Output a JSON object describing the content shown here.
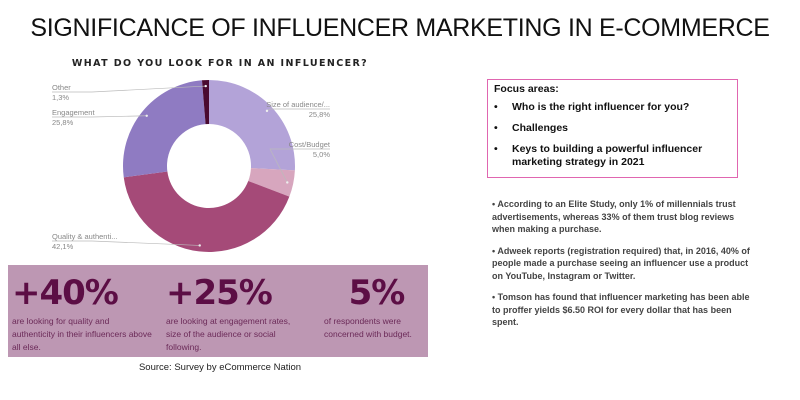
{
  "title": "SIGNIFICANCE OF INFLUENCER MARKETING IN E-COMMERCE",
  "chart_data": {
    "type": "pie",
    "style": "donut",
    "title": "WHAT DO YOU LOOK FOR IN AN INFLUENCER?",
    "slices": [
      {
        "label": "Size of audience/...",
        "value": 25.8,
        "value_label": "25,8%",
        "color": "#b3a3d8"
      },
      {
        "label": "Cost/Budget",
        "value": 5.0,
        "value_label": "5,0%",
        "color": "#d7a6be"
      },
      {
        "label": "Quality & authenti...",
        "value": 42.1,
        "value_label": "42,1%",
        "color": "#a54a78"
      },
      {
        "label": "Engagement",
        "value": 25.8,
        "value_label": "25,8%",
        "color": "#8f7bc2"
      },
      {
        "label": "Other",
        "value": 1.3,
        "value_label": "1,3%",
        "color": "#4a0a30"
      }
    ]
  },
  "stats": [
    {
      "number": "+40%",
      "text": "are looking for quality and authenticity in their influencers above all else."
    },
    {
      "number": "+25%",
      "text": "are looking at engagement rates,  size of the audience or social following."
    },
    {
      "number": "5%",
      "text": "of respondents were concerned with budget."
    }
  ],
  "source": "Source: Survey by eCommerce Nation",
  "focus": {
    "heading": "Focus areas:",
    "items": [
      "Who is the right influencer for you?",
      "Challenges",
      "Keys to building a powerful influencer marketing strategy in 2021"
    ]
  },
  "facts": [
    "• According to an Elite Study, only 1% of millennials trust advertisements, whereas 33% of them trust blog reviews when making a purchase.",
    "• Adweek reports (registration required) that, in 2016, 40% of people made a purchase seeing an influencer use a product on YouTube, Instagram or Twitter.",
    "• Tomson has found that influencer marketing has been able to proffer yields $6.50 ROI for every dollar that has been spent."
  ]
}
